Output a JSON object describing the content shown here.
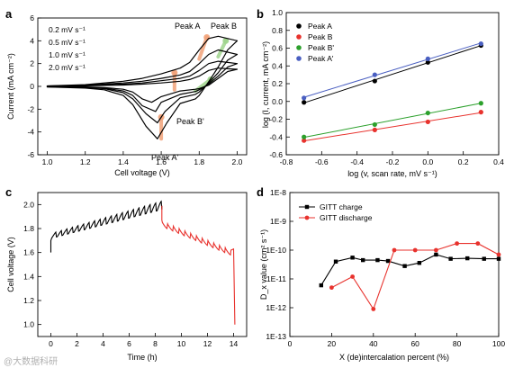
{
  "chart_data": [
    {
      "panel": "a",
      "type": "line",
      "xlabel": "Cell voltage (V)",
      "ylabel": "Current (mA cm⁻²)",
      "xlim": [
        0.95,
        2.05
      ],
      "ylim": [
        -6,
        6
      ],
      "xticks": [
        "1.0",
        "1.2",
        "1.4",
        "1.6",
        "1.8",
        "2.0"
      ],
      "yticks": [
        "-6",
        "-4",
        "-2",
        "0",
        "2",
        "4",
        "6"
      ],
      "series": [
        {
          "name": "0.2 mV s⁻¹",
          "x": [
            1.0,
            1.2,
            1.4,
            1.5,
            1.6,
            1.7,
            1.75,
            1.8,
            1.85,
            1.9,
            1.95,
            2.0,
            1.95,
            1.9,
            1.85,
            1.8,
            1.78,
            1.7,
            1.6,
            1.55,
            1.5,
            1.45,
            1.4,
            1.3,
            1.2,
            1.0
          ],
          "y": [
            0.02,
            0.05,
            0.12,
            0.2,
            0.3,
            0.45,
            0.6,
            0.9,
            1.4,
            1.6,
            1.55,
            1.5,
            1.3,
            0.7,
            0.1,
            -0.2,
            -0.25,
            -0.4,
            -0.9,
            -1.4,
            -1.1,
            -0.5,
            -0.25,
            -0.1,
            -0.05,
            -0.02
          ]
        },
        {
          "name": "0.5 mV s⁻¹",
          "x": [
            1.0,
            1.2,
            1.4,
            1.5,
            1.6,
            1.7,
            1.75,
            1.8,
            1.85,
            1.9,
            1.95,
            2.0,
            1.95,
            1.9,
            1.85,
            1.8,
            1.78,
            1.7,
            1.6,
            1.57,
            1.5,
            1.45,
            1.4,
            1.3,
            1.2,
            1.0
          ],
          "y": [
            0.02,
            0.08,
            0.2,
            0.3,
            0.5,
            0.7,
            0.9,
            1.4,
            2.0,
            2.2,
            2.1,
            2.0,
            1.7,
            0.9,
            0.2,
            -0.3,
            -0.45,
            -0.7,
            -1.4,
            -2.2,
            -1.7,
            -0.8,
            -0.4,
            -0.15,
            -0.07,
            -0.03
          ]
        },
        {
          "name": "1.0 mV s⁻¹",
          "x": [
            1.0,
            1.2,
            1.4,
            1.5,
            1.6,
            1.7,
            1.75,
            1.8,
            1.85,
            1.9,
            1.95,
            2.0,
            1.95,
            1.9,
            1.85,
            1.8,
            1.78,
            1.7,
            1.62,
            1.58,
            1.52,
            1.45,
            1.4,
            1.3,
            1.2,
            1.0
          ],
          "y": [
            0.03,
            0.1,
            0.3,
            0.45,
            0.7,
            1.0,
            1.3,
            2.0,
            2.8,
            3.2,
            3.0,
            2.8,
            2.3,
            1.2,
            0.3,
            -0.5,
            -0.7,
            -1.0,
            -2.2,
            -3.2,
            -2.4,
            -1.1,
            -0.55,
            -0.2,
            -0.1,
            -0.04
          ]
        },
        {
          "name": "2.0 mV s⁻¹",
          "x": [
            1.0,
            1.2,
            1.4,
            1.5,
            1.6,
            1.7,
            1.75,
            1.8,
            1.85,
            1.9,
            1.95,
            2.0,
            1.95,
            1.9,
            1.85,
            1.8,
            1.78,
            1.7,
            1.63,
            1.58,
            1.52,
            1.45,
            1.4,
            1.3,
            1.2,
            1.0
          ],
          "y": [
            0.04,
            0.15,
            0.45,
            0.7,
            1.1,
            1.6,
            2.1,
            3.2,
            4.2,
            4.4,
            4.2,
            4.0,
            3.2,
            1.7,
            0.4,
            -0.8,
            -1.1,
            -1.5,
            -3.2,
            -4.6,
            -3.5,
            -1.6,
            -0.8,
            -0.3,
            -0.15,
            -0.05
          ]
        }
      ],
      "annotations": [
        "Peak A",
        "Peak B",
        "Peak B'",
        "Peak A'"
      ]
    },
    {
      "panel": "b",
      "type": "scatter",
      "xlabel": "log (v, scan rate, mV s⁻¹)",
      "ylabel": "log (I, current, mA cm⁻²)",
      "xlim": [
        -0.8,
        0.4
      ],
      "ylim": [
        -0.6,
        1.0
      ],
      "xticks": [
        "-0.8",
        "-0.6",
        "-0.4",
        "-0.2",
        "0.0",
        "0.2",
        "0.4"
      ],
      "yticks": [
        "-0.6",
        "-0.4",
        "-0.2",
        "0.0",
        "0.2",
        "0.4",
        "0.6",
        "0.8",
        "1.0"
      ],
      "legend": "top-left",
      "series": [
        {
          "name": "Peak A",
          "color": "#000000",
          "x": [
            -0.7,
            -0.3,
            0.0,
            0.3
          ],
          "y": [
            -0.01,
            0.23,
            0.44,
            0.63
          ]
        },
        {
          "name": "Peak B",
          "color": "#e8322d",
          "x": [
            -0.7,
            -0.3,
            0.0,
            0.3
          ],
          "y": [
            -0.44,
            -0.32,
            -0.23,
            -0.12
          ]
        },
        {
          "name": "Peak B'",
          "color": "#2ca02c",
          "x": [
            -0.7,
            -0.3,
            0.0,
            0.3
          ],
          "y": [
            -0.4,
            -0.26,
            -0.13,
            -0.02
          ]
        },
        {
          "name": "Peak A'",
          "color": "#4a5fc1",
          "x": [
            -0.7,
            -0.3,
            0.0,
            0.3
          ],
          "y": [
            0.04,
            0.3,
            0.48,
            0.65
          ]
        }
      ]
    },
    {
      "panel": "c",
      "type": "line",
      "xlabel": "Time (h)",
      "ylabel": "Cell voltage (V)",
      "xlim": [
        -1,
        15
      ],
      "ylim": [
        0.9,
        2.1
      ],
      "xticks": [
        "0",
        "2",
        "4",
        "6",
        "8",
        "10",
        "12",
        "14"
      ],
      "yticks": [
        "1.0",
        "1.2",
        "1.4",
        "1.6",
        "1.8",
        "2.0"
      ],
      "charge_color": "#000000",
      "discharge_color": "#e8322d",
      "charge": {
        "t_start": 0.0,
        "t_end": 8.5,
        "pulses": 20,
        "v_start": 1.7,
        "v_end": 1.99
      },
      "discharge": {
        "t_start": 8.5,
        "t_end": 14.1,
        "pulses": 12,
        "v_start": 1.87,
        "v_end": 1.63,
        "v_final": 1.0
      }
    },
    {
      "panel": "d",
      "type": "line",
      "xlabel": "X (de)intercalation percent (%)",
      "ylabel": "D_x value (cm² s⁻¹)",
      "scale_y": "log",
      "xlim": [
        0,
        100
      ],
      "ylim": [
        1e-13,
        1e-08
      ],
      "xticks": [
        "0",
        "20",
        "40",
        "60",
        "80",
        "100"
      ],
      "yticks": [
        "1E-13",
        "1E-12",
        "1E-11",
        "1E-10",
        "1E-9",
        "1E-8"
      ],
      "legend": "top-left",
      "series": [
        {
          "name": "GITT charge",
          "color": "#000000",
          "x": [
            15,
            22,
            30,
            35,
            42,
            47,
            55,
            62,
            70,
            77,
            85,
            93,
            100
          ],
          "y": [
            6e-12,
            4e-11,
            5.5e-11,
            4.5e-11,
            4.5e-11,
            4.2e-11,
            2.8e-11,
            3.6e-11,
            7e-11,
            5e-11,
            5.2e-11,
            5e-11,
            5e-11
          ]
        },
        {
          "name": "GITT discharge",
          "color": "#e8322d",
          "x": [
            20,
            30,
            40,
            50,
            60,
            70,
            80,
            90,
            100
          ],
          "y": [
            5e-12,
            1.2e-11,
            9e-13,
            1e-10,
            1e-10,
            1e-10,
            1.7e-10,
            1.7e-10,
            7e-11
          ]
        }
      ]
    }
  ],
  "watermark": "@大数据科研"
}
